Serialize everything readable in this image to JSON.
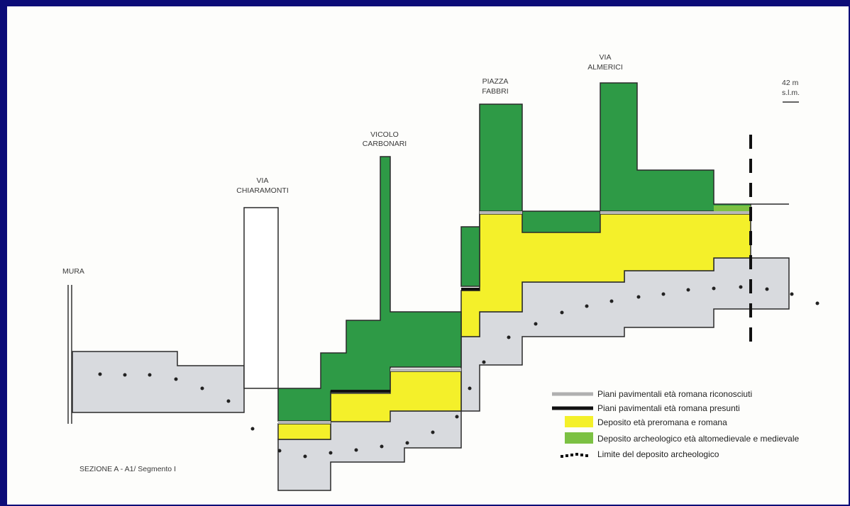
{
  "labels": {
    "mura": "MURA",
    "via_chiaramonti": [
      "VIA",
      "CHIARAMONTI"
    ],
    "vicolo_carbonari": [
      "VICOLO",
      "CARBONARI"
    ],
    "piazza_fabbri": [
      "PIAZZA",
      "FABBRI"
    ],
    "via_almerici": [
      "VIA",
      "ALMERICI"
    ],
    "elevation": [
      "42 m",
      "s.l.m."
    ],
    "section": "SEZIONE A - A1/ Segmento I"
  },
  "legend": [
    {
      "symbol": "grey-line",
      "text": "Piani pavimentali età romana riconosciuti"
    },
    {
      "symbol": "black-line",
      "text": "Piani pavimentali età romana presunti"
    },
    {
      "symbol": "yellow-box",
      "text": "Deposito età preromana e romana"
    },
    {
      "symbol": "green-box",
      "text": "Deposito archeologico età altomedievale e medievale"
    },
    {
      "symbol": "dot-line",
      "text": "Limite del deposito archeologico"
    }
  ],
  "colors": {
    "background": "#0c0c78",
    "paper": "#fdfdfb",
    "grey_fill": "#d8dade",
    "yellow": "#f4f02a",
    "green": "#2e9a46",
    "green_light": "#7cc143",
    "outline": "#2a2a2a"
  }
}
